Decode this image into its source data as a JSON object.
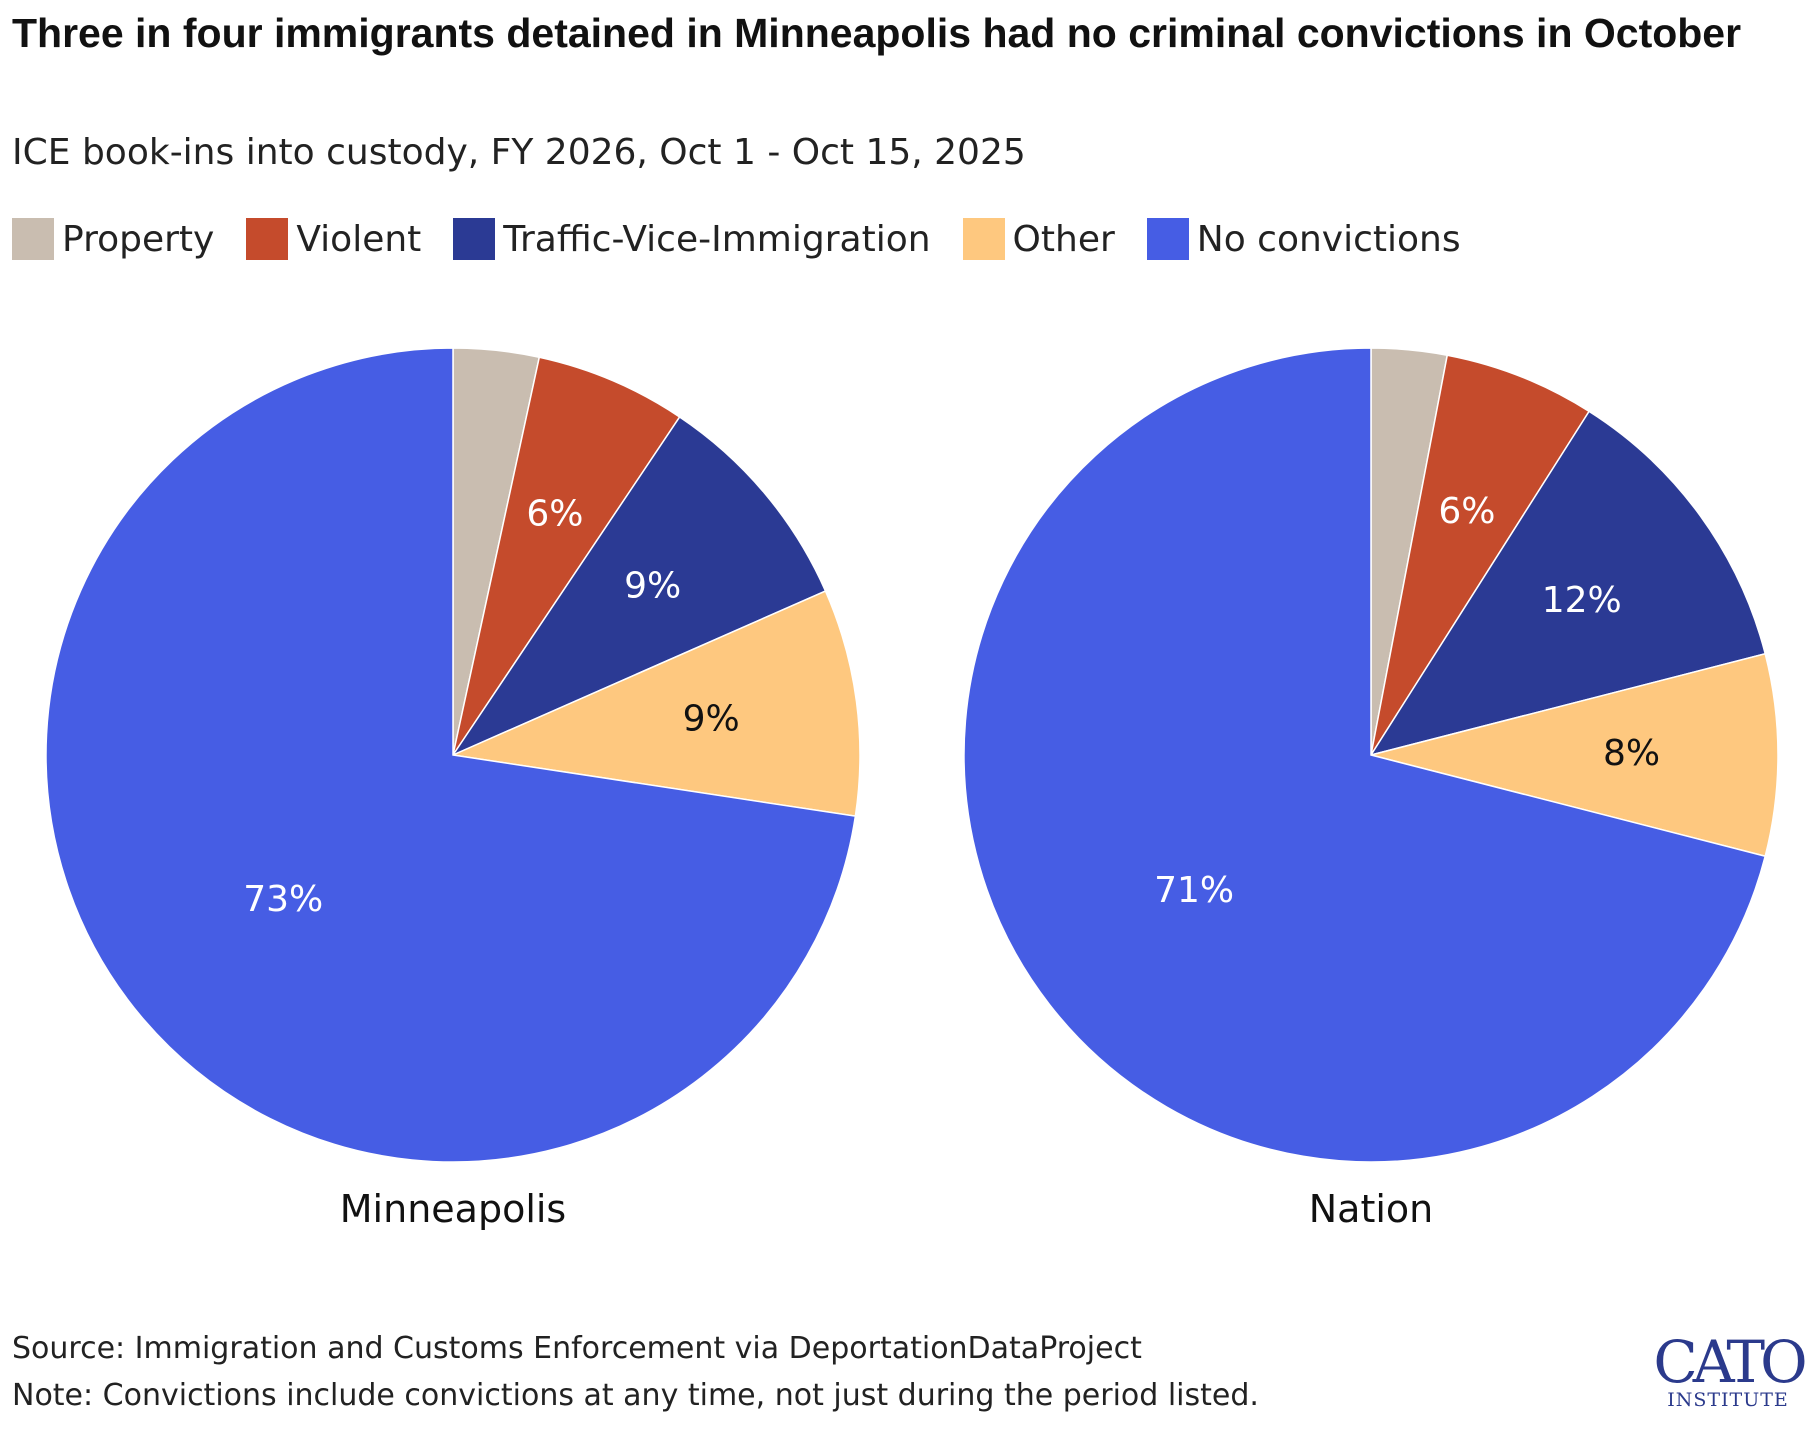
{
  "title": "Three in four immigrants detained in Minneapolis had no criminal convictions in October",
  "subtitle": "ICE book-ins into custody, FY 2026, Oct 1 - Oct 15, 2025",
  "legend": [
    {
      "label": "Property",
      "color": "#c9bdb0"
    },
    {
      "label": "Violent",
      "color": "#c54b2c"
    },
    {
      "label": "Traffic-Vice-Immigration",
      "color": "#2b3a94"
    },
    {
      "label": "Other",
      "color": "#fec87f"
    },
    {
      "label": "No convictions",
      "color": "#465de4"
    }
  ],
  "chart_data": [
    {
      "type": "pie",
      "title": "Minneapolis",
      "categories": [
        "Property",
        "Violent",
        "Traffic-Vice-Immigration",
        "Other",
        "No convictions"
      ],
      "values": [
        3.4,
        6,
        9,
        9,
        72.6
      ],
      "data_labels": [
        "",
        "6%",
        "9%",
        "9%",
        "73%"
      ]
    },
    {
      "type": "pie",
      "title": "Nation",
      "categories": [
        "Property",
        "Violent",
        "Traffic-Vice-Immigration",
        "Other",
        "No convictions"
      ],
      "values": [
        3,
        6,
        12,
        8,
        71
      ],
      "data_labels": [
        "",
        "6%",
        "12%",
        "8%",
        "71%"
      ]
    }
  ],
  "footer": {
    "source": "Source: Immigration and Customs Enforcement via DeportationDataProject",
    "note": "Note: Convictions include convictions at any time, not just during the period listed."
  },
  "logo": {
    "name": "CATO",
    "sub": "INSTITUTE"
  }
}
